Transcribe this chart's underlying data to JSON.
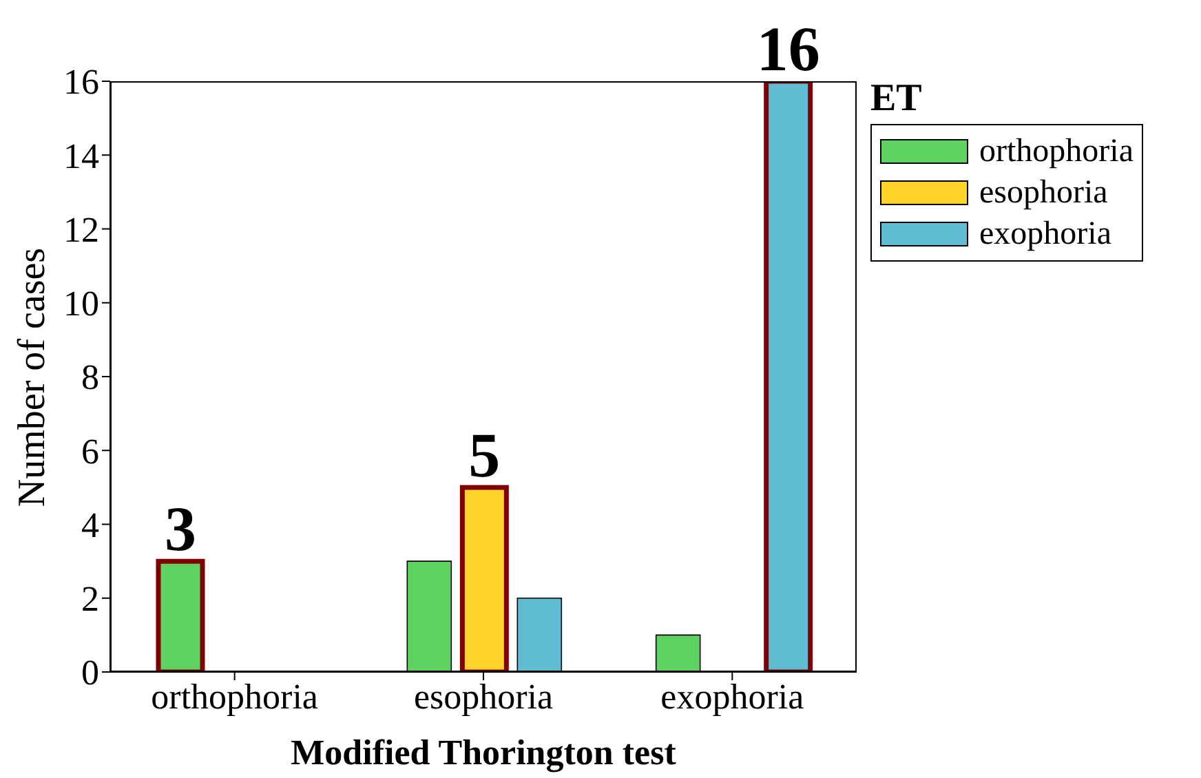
{
  "chart_data": {
    "type": "bar",
    "xlabel": "Modified Thorington test",
    "ylabel": "Number of cases",
    "legend_title": "ET",
    "categories": [
      "orthophoria",
      "esophoria",
      "exophoria"
    ],
    "series": [
      {
        "name": "orthophoria",
        "color": "#5fd35f",
        "values": [
          3,
          3,
          1
        ],
        "value_labels": [
          "3",
          null,
          null
        ]
      },
      {
        "name": "esophoria",
        "color": "#ffd42a",
        "values": [
          0,
          5,
          0
        ],
        "value_labels": [
          null,
          "5",
          null
        ]
      },
      {
        "name": "exophoria",
        "color": "#5fbcd3",
        "values": [
          0,
          2,
          16
        ],
        "value_labels": [
          null,
          null,
          "16"
        ]
      }
    ],
    "ylim": [
      0,
      16
    ],
    "yticks": [
      0,
      2,
      4,
      6,
      8,
      10,
      12,
      14,
      16
    ],
    "grid": false,
    "legend": "right"
  }
}
